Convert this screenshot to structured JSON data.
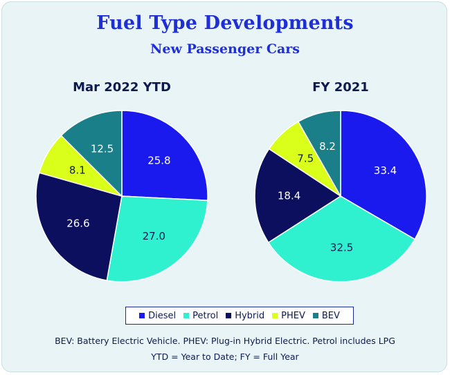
{
  "header": {
    "title": "Fuel Type Developments",
    "subtitle": "New Passenger Cars"
  },
  "legend": [
    {
      "label": "Diesel",
      "color": "#1a1aee"
    },
    {
      "label": "Petrol",
      "color": "#2ff0cf"
    },
    {
      "label": "Hybrid",
      "color": "#0b0f5e"
    },
    {
      "label": "PHEV",
      "color": "#d9ff1a"
    },
    {
      "label": "BEV",
      "color": "#1b7f8a"
    }
  ],
  "chart_data": [
    {
      "type": "pie",
      "title": "Mar 2022 YTD",
      "categories": [
        "Diesel",
        "Petrol",
        "Hybrid",
        "PHEV",
        "BEV"
      ],
      "values": [
        25.8,
        27.0,
        26.6,
        8.1,
        12.5
      ],
      "data_labels": [
        "25.8",
        "27.0",
        "26.6",
        "8.1",
        "12.5"
      ],
      "colors": [
        "#1a1aee",
        "#2ff0cf",
        "#0b0f5e",
        "#d9ff1a",
        "#1b7f8a"
      ],
      "label_colors": [
        "#ffffff",
        "#0d1a4f",
        "#ffffff",
        "#0d1a4f",
        "#ffffff"
      ],
      "legend_position": "bottom"
    },
    {
      "type": "pie",
      "title": "FY 2021",
      "categories": [
        "Diesel",
        "Petrol",
        "Hybrid",
        "PHEV",
        "BEV"
      ],
      "values": [
        33.4,
        32.5,
        18.4,
        7.5,
        8.2
      ],
      "data_labels": [
        "33.4",
        "32.5",
        "18.4",
        "7.5",
        "8.2"
      ],
      "colors": [
        "#1a1aee",
        "#2ff0cf",
        "#0b0f5e",
        "#d9ff1a",
        "#1b7f8a"
      ],
      "label_colors": [
        "#ffffff",
        "#0d1a4f",
        "#ffffff",
        "#0d1a4f",
        "#ffffff"
      ],
      "legend_position": "bottom"
    }
  ],
  "footnotes": {
    "line1": "BEV: Battery Electric Vehicle. PHEV: Plug-in Hybrid Electric. Petrol includes LPG",
    "line2": "YTD = Year to Date; FY = Full Year"
  }
}
